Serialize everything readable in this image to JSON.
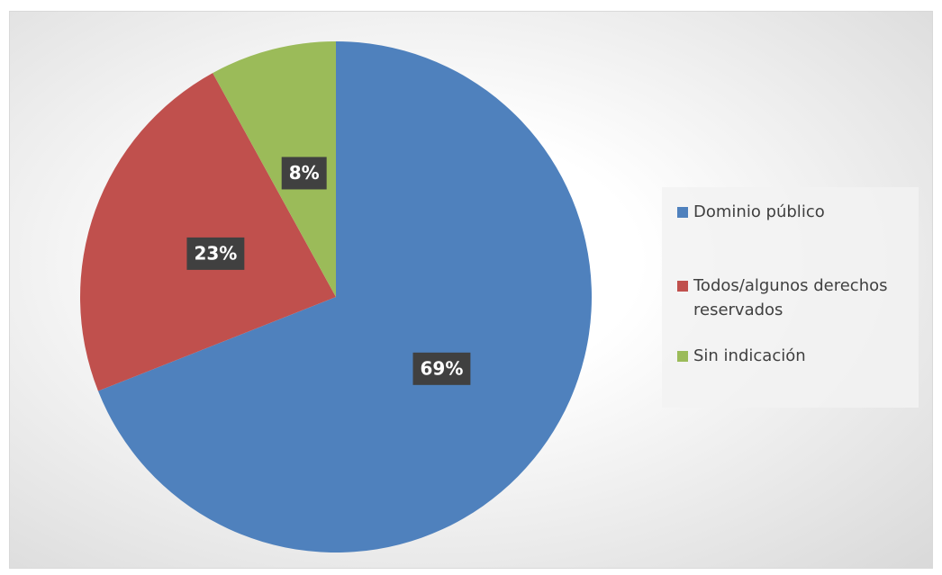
{
  "chart_data": {
    "type": "pie",
    "categories": [
      "Dominio público",
      "Todos/algunos derechos reservados",
      "Sin indicación"
    ],
    "values": [
      69,
      23,
      8
    ],
    "value_labels": [
      "69%",
      "23%",
      "8%"
    ],
    "colors": [
      "#4f81bd",
      "#c0504d",
      "#9bbb59"
    ],
    "legend": "right"
  }
}
